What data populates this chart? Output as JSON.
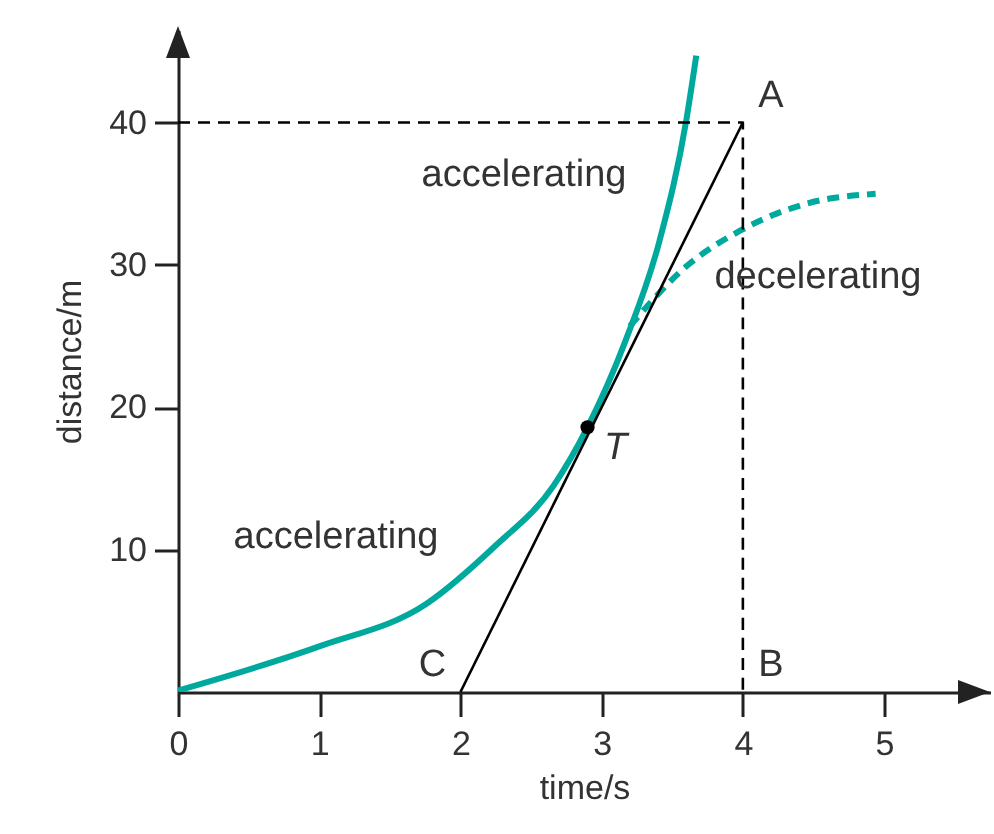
{
  "chart_data": {
    "type": "line",
    "xlabel": "time/s",
    "ylabel": "distance/m",
    "xlim": [
      0,
      5.75
    ],
    "ylim": [
      0,
      46.5
    ],
    "xticks": [
      0,
      1,
      2,
      3,
      4,
      5
    ],
    "yticks": [
      10,
      20,
      30,
      40
    ],
    "grid": false,
    "series": [
      {
        "color": "#00a99d",
        "line_style": "solid",
        "x": [
          0,
          1.0,
          1.76,
          2.24,
          2.66,
          2.9,
          3.17,
          3.41,
          3.6,
          3.67
        ],
        "values": [
          0.1,
          3.2,
          6.2,
          10.2,
          14.5,
          18.6,
          24.7,
          31.7,
          40.2,
          44.7
        ]
      },
      {
        "color": "#00a99d",
        "line_style": "dashed",
        "x": [
          3.2,
          3.6,
          3.98,
          4.45,
          4.94
        ],
        "values": [
          25.7,
          29.9,
          32.4,
          34.3,
          35.0
        ]
      },
      {
        "color": "#000000",
        "line_style": "solid",
        "x": [
          2,
          4
        ],
        "values": [
          0,
          40
        ]
      },
      {
        "color": "#000000",
        "line_style": "dashed",
        "x": [
          0,
          4,
          4
        ],
        "values": [
          40,
          40,
          0
        ]
      },
      {
        "type": "scatter",
        "color": "#000000",
        "marker": "circle",
        "x": [
          2.9
        ],
        "values": [
          18.6
        ]
      }
    ],
    "annotations": [
      "accelerating",
      "accelerating",
      "decelerating",
      {
        "text": "A",
        "x": 4,
        "y": 40
      },
      {
        "text": "B",
        "x": 4,
        "y": 0
      },
      {
        "text": "C",
        "x": 2,
        "y": 0
      },
      {
        "text": "T",
        "x": 2.9,
        "y": 18.6
      }
    ]
  }
}
